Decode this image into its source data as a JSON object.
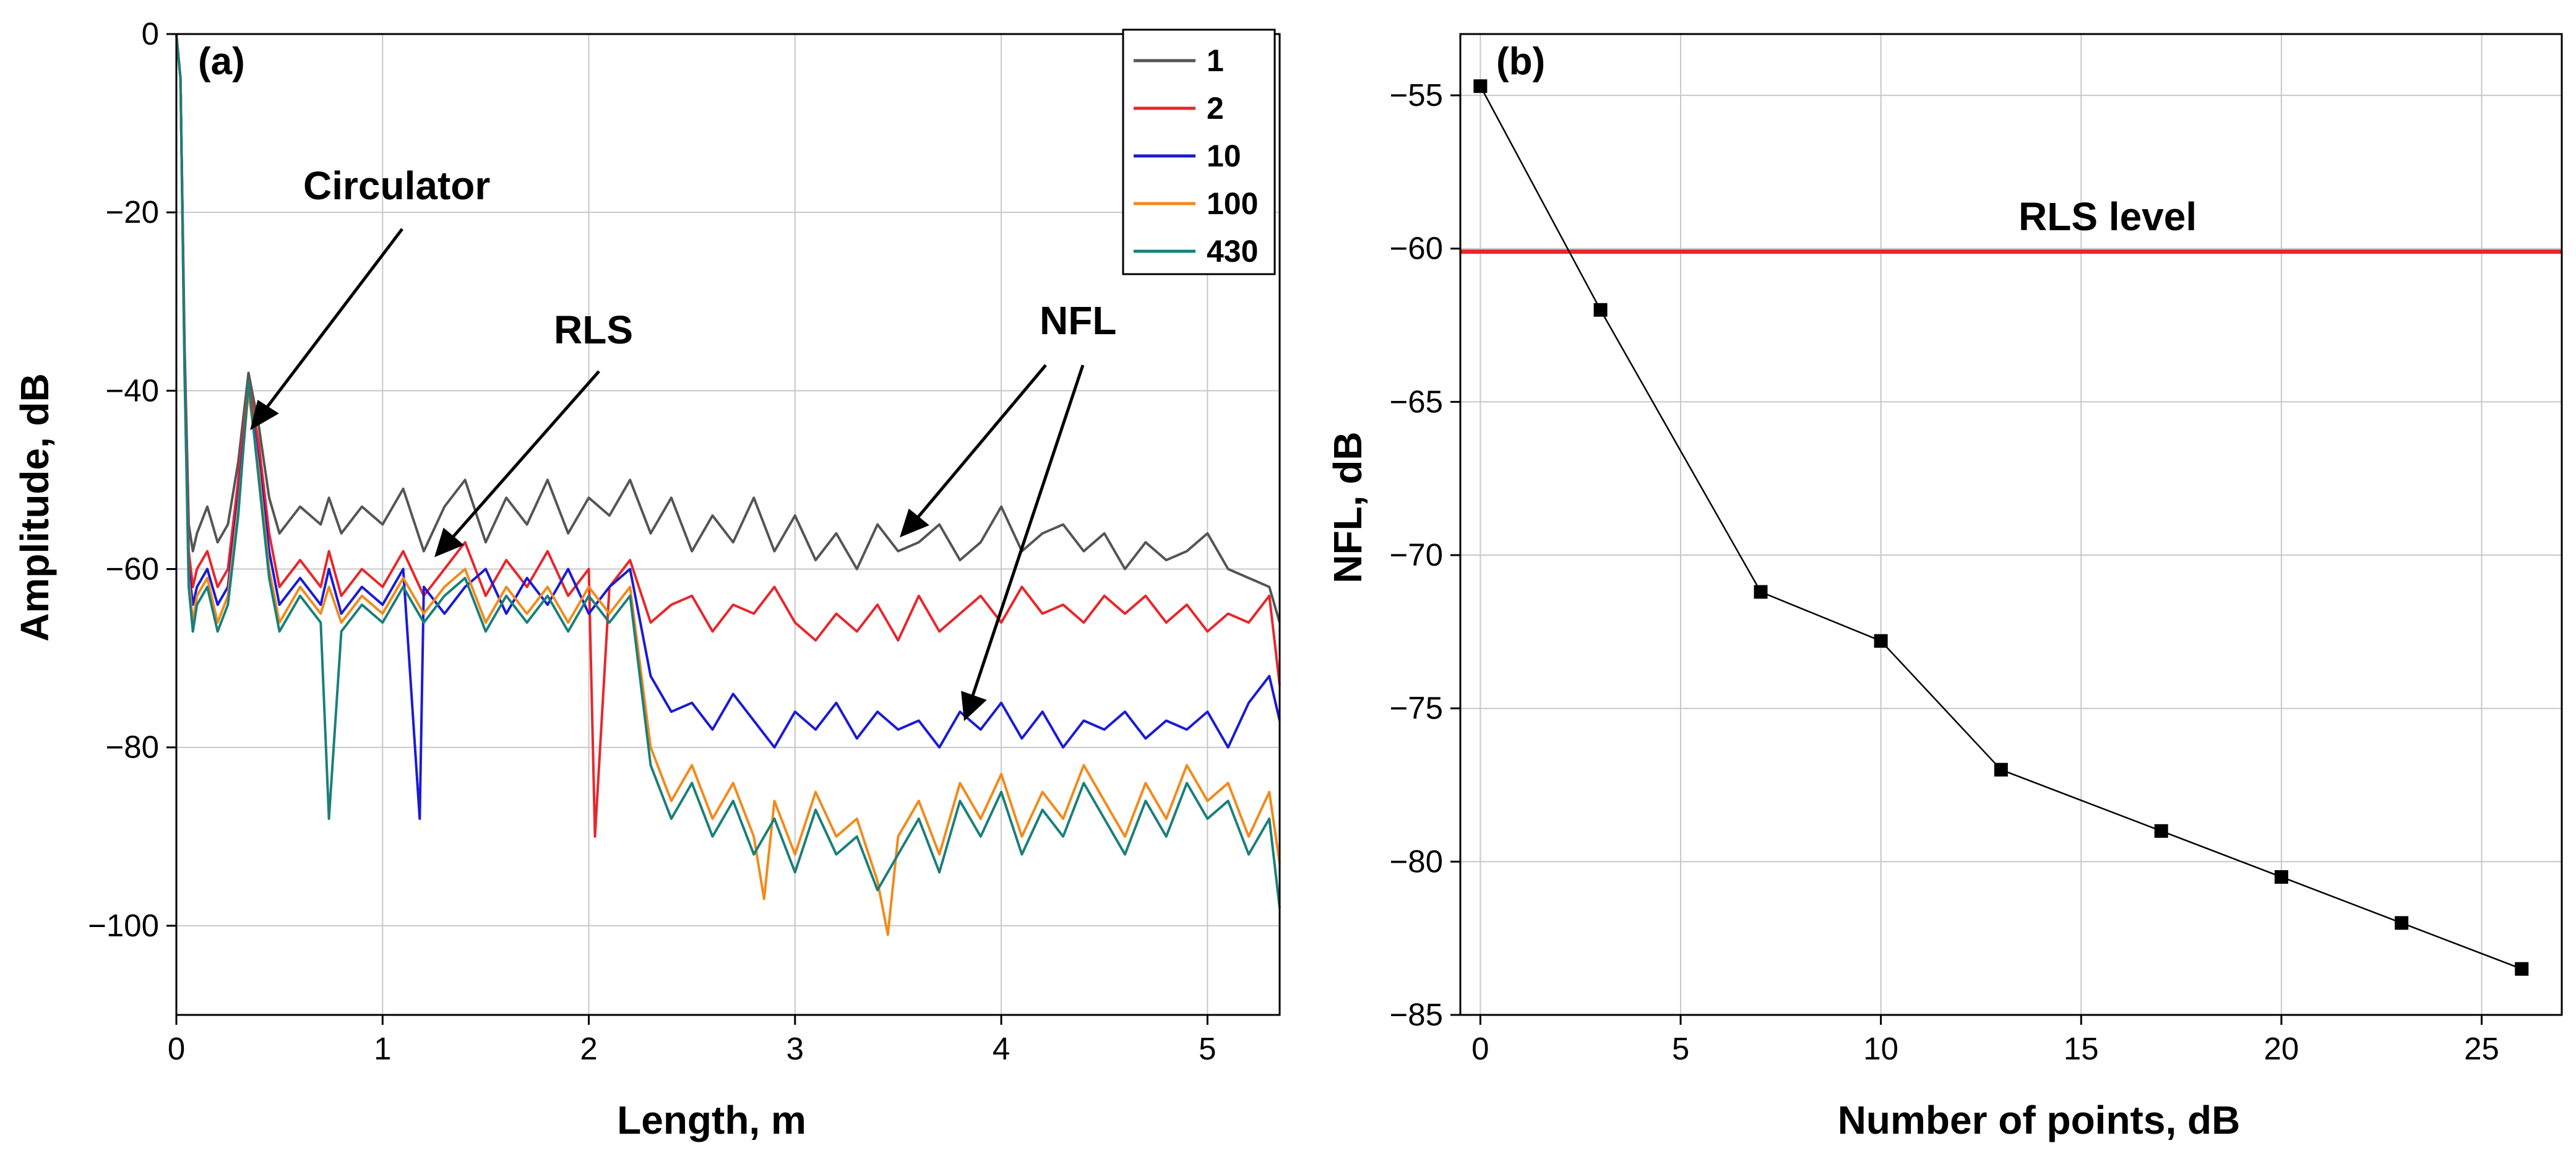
{
  "chart_data": [
    {
      "type": "line",
      "panel_label": "(a)",
      "xlabel": "Length, m",
      "ylabel": "Amplitude, dB",
      "xlim": [
        0,
        5.35
      ],
      "ylim": [
        -110,
        0
      ],
      "x_ticks": [
        0,
        1,
        2,
        3,
        4,
        5
      ],
      "y_ticks": [
        0,
        -20,
        -40,
        -60,
        -80,
        -100
      ],
      "grid": true,
      "legend_position": "top-right",
      "series": [
        {
          "name": "1",
          "color": "#555555",
          "x": [
            0.0,
            0.02,
            0.04,
            0.06,
            0.08,
            0.1,
            0.15,
            0.2,
            0.25,
            0.3,
            0.35,
            0.4,
            0.45,
            0.5,
            0.6,
            0.7,
            0.74,
            0.8,
            0.9,
            1.0,
            1.1,
            1.2,
            1.3,
            1.4,
            1.5,
            1.6,
            1.7,
            1.8,
            1.9,
            2.0,
            2.1,
            2.2,
            2.3,
            2.4,
            2.5,
            2.6,
            2.7,
            2.8,
            2.9,
            3.0,
            3.1,
            3.2,
            3.3,
            3.4,
            3.5,
            3.6,
            3.7,
            3.8,
            3.9,
            4.0,
            4.1,
            4.2,
            4.3,
            4.4,
            4.5,
            4.6,
            4.7,
            4.8,
            4.9,
            5.0,
            5.1,
            5.2,
            5.3,
            5.35
          ],
          "y": [
            0,
            -5,
            -35,
            -55,
            -58,
            -56,
            -53,
            -57,
            -55,
            -48,
            -38,
            -44,
            -52,
            -56,
            -53,
            -55,
            -52,
            -56,
            -53,
            -55,
            -51,
            -58,
            -53,
            -50,
            -57,
            -52,
            -55,
            -50,
            -56,
            -52,
            -54,
            -50,
            -56,
            -52,
            -58,
            -54,
            -57,
            -52,
            -58,
            -54,
            -59,
            -56,
            -60,
            -55,
            -58,
            -57,
            -55,
            -59,
            -57,
            -53,
            -58,
            -56,
            -55,
            -58,
            -56,
            -60,
            -57,
            -59,
            -58,
            -56,
            -60,
            -61,
            -62,
            -66
          ]
        },
        {
          "name": "2",
          "color": "#e8262b",
          "x": [
            0.0,
            0.02,
            0.04,
            0.06,
            0.08,
            0.1,
            0.15,
            0.2,
            0.25,
            0.3,
            0.35,
            0.4,
            0.45,
            0.5,
            0.6,
            0.7,
            0.74,
            0.8,
            0.9,
            1.0,
            1.1,
            1.2,
            1.3,
            1.4,
            1.5,
            1.6,
            1.7,
            1.8,
            1.9,
            2.0,
            2.03,
            2.1,
            2.2,
            2.3,
            2.4,
            2.5,
            2.6,
            2.7,
            2.8,
            2.9,
            3.0,
            3.1,
            3.2,
            3.3,
            3.4,
            3.5,
            3.6,
            3.7,
            3.8,
            3.9,
            4.0,
            4.1,
            4.2,
            4.3,
            4.4,
            4.5,
            4.6,
            4.7,
            4.8,
            4.9,
            5.0,
            5.1,
            5.2,
            5.3,
            5.35
          ],
          "y": [
            0,
            -5,
            -36,
            -58,
            -62,
            -60,
            -58,
            -62,
            -60,
            -50,
            -39,
            -46,
            -56,
            -62,
            -59,
            -62,
            -58,
            -63,
            -60,
            -62,
            -58,
            -63,
            -60,
            -57,
            -63,
            -59,
            -62,
            -58,
            -63,
            -60,
            -90,
            -62,
            -59,
            -66,
            -64,
            -63,
            -67,
            -64,
            -65,
            -62,
            -66,
            -68,
            -65,
            -67,
            -64,
            -68,
            -63,
            -67,
            -65,
            -63,
            -66,
            -62,
            -65,
            -64,
            -66,
            -63,
            -65,
            -63,
            -66,
            -64,
            -67,
            -65,
            -66,
            -63,
            -73
          ]
        },
        {
          "name": "10",
          "color": "#1a1ad6",
          "x": [
            0.0,
            0.02,
            0.04,
            0.06,
            0.08,
            0.1,
            0.15,
            0.2,
            0.25,
            0.3,
            0.35,
            0.4,
            0.45,
            0.5,
            0.6,
            0.7,
            0.74,
            0.8,
            0.9,
            1.0,
            1.1,
            1.18,
            1.2,
            1.3,
            1.4,
            1.5,
            1.6,
            1.7,
            1.8,
            1.9,
            2.0,
            2.1,
            2.2,
            2.3,
            2.4,
            2.5,
            2.6,
            2.7,
            2.8,
            2.9,
            3.0,
            3.1,
            3.2,
            3.3,
            3.4,
            3.5,
            3.6,
            3.7,
            3.8,
            3.9,
            4.0,
            4.1,
            4.2,
            4.3,
            4.4,
            4.5,
            4.6,
            4.7,
            4.8,
            4.9,
            5.0,
            5.1,
            5.2,
            5.3,
            5.35
          ],
          "y": [
            0,
            -5,
            -37,
            -60,
            -64,
            -62,
            -60,
            -64,
            -62,
            -52,
            -40,
            -48,
            -58,
            -64,
            -61,
            -64,
            -60,
            -65,
            -62,
            -64,
            -60,
            -88,
            -62,
            -65,
            -62,
            -60,
            -65,
            -61,
            -64,
            -60,
            -65,
            -62,
            -60,
            -72,
            -76,
            -75,
            -78,
            -74,
            -77,
            -80,
            -76,
            -78,
            -75,
            -79,
            -76,
            -78,
            -77,
            -80,
            -76,
            -78,
            -75,
            -79,
            -76,
            -80,
            -77,
            -78,
            -76,
            -79,
            -77,
            -78,
            -76,
            -80,
            -75,
            -72,
            -77
          ]
        },
        {
          "name": "100",
          "color": "#f28a1a",
          "x": [
            0.0,
            0.02,
            0.04,
            0.06,
            0.08,
            0.1,
            0.15,
            0.2,
            0.25,
            0.3,
            0.35,
            0.4,
            0.45,
            0.5,
            0.6,
            0.7,
            0.74,
            0.8,
            0.9,
            1.0,
            1.1,
            1.2,
            1.3,
            1.4,
            1.5,
            1.6,
            1.7,
            1.8,
            1.9,
            2.0,
            2.1,
            2.2,
            2.3,
            2.4,
            2.5,
            2.6,
            2.7,
            2.8,
            2.85,
            2.9,
            3.0,
            3.1,
            3.2,
            3.3,
            3.4,
            3.45,
            3.5,
            3.6,
            3.7,
            3.8,
            3.9,
            4.0,
            4.1,
            4.2,
            4.3,
            4.4,
            4.5,
            4.6,
            4.7,
            4.8,
            4.9,
            5.0,
            5.1,
            5.2,
            5.3,
            5.35
          ],
          "y": [
            0,
            -5,
            -38,
            -61,
            -66,
            -63,
            -61,
            -66,
            -63,
            -53,
            -40,
            -49,
            -60,
            -66,
            -62,
            -65,
            -62,
            -66,
            -63,
            -65,
            -61,
            -65,
            -62,
            -60,
            -66,
            -62,
            -65,
            -62,
            -66,
            -62,
            -65,
            -62,
            -80,
            -86,
            -82,
            -88,
            -84,
            -90,
            -97,
            -86,
            -92,
            -85,
            -90,
            -88,
            -95,
            -101,
            -90,
            -86,
            -92,
            -84,
            -88,
            -83,
            -90,
            -85,
            -88,
            -82,
            -86,
            -90,
            -84,
            -88,
            -82,
            -86,
            -84,
            -90,
            -85,
            -93
          ]
        },
        {
          "name": "430",
          "color": "#1a7f7a",
          "x": [
            0.0,
            0.02,
            0.04,
            0.06,
            0.08,
            0.1,
            0.15,
            0.2,
            0.25,
            0.3,
            0.35,
            0.4,
            0.45,
            0.5,
            0.6,
            0.7,
            0.74,
            0.8,
            0.9,
            1.0,
            1.1,
            1.2,
            1.3,
            1.4,
            1.5,
            1.6,
            1.7,
            1.8,
            1.9,
            2.0,
            2.1,
            2.2,
            2.3,
            2.4,
            2.5,
            2.6,
            2.7,
            2.8,
            2.9,
            3.0,
            3.1,
            3.2,
            3.3,
            3.4,
            3.5,
            3.6,
            3.7,
            3.8,
            3.9,
            4.0,
            4.1,
            4.2,
            4.3,
            4.4,
            4.5,
            4.6,
            4.7,
            4.8,
            4.9,
            5.0,
            5.1,
            5.2,
            5.3,
            5.35
          ],
          "y": [
            0,
            -5,
            -38,
            -62,
            -67,
            -64,
            -62,
            -67,
            -64,
            -54,
            -39,
            -50,
            -61,
            -67,
            -63,
            -66,
            -88,
            -67,
            -64,
            -66,
            -62,
            -66,
            -63,
            -61,
            -67,
            -63,
            -66,
            -63,
            -67,
            -63,
            -66,
            -63,
            -82,
            -88,
            -84,
            -90,
            -86,
            -92,
            -88,
            -94,
            -87,
            -92,
            -90,
            -96,
            -92,
            -88,
            -94,
            -86,
            -90,
            -85,
            -92,
            -87,
            -90,
            -84,
            -88,
            -92,
            -86,
            -90,
            -84,
            -88,
            -86,
            -92,
            -88,
            -98
          ]
        }
      ],
      "annotations": [
        {
          "text": "Circulator"
        },
        {
          "text": "RLS"
        },
        {
          "text": "NFL"
        }
      ]
    },
    {
      "type": "line",
      "panel_label": "(b)",
      "xlabel": "Number of points, dB",
      "ylabel": "NFL, dB",
      "xlim": [
        -0.5,
        27
      ],
      "ylim": [
        -85,
        -53
      ],
      "x_ticks": [
        0,
        5,
        10,
        15,
        20,
        25
      ],
      "y_ticks": [
        -55,
        -60,
        -65,
        -70,
        -75,
        -80,
        -85
      ],
      "grid": true,
      "series": [
        {
          "color": "#000000",
          "marker": "square",
          "x": [
            0,
            3,
            7,
            10,
            13,
            17,
            20,
            23,
            26
          ],
          "y": [
            -54.7,
            -62,
            -71.2,
            -72.8,
            -77,
            -79,
            -80.5,
            -82,
            -83.5
          ]
        }
      ],
      "reference_line": {
        "label": "RLS level",
        "y": -60.1,
        "color": "#e8262b"
      }
    }
  ]
}
